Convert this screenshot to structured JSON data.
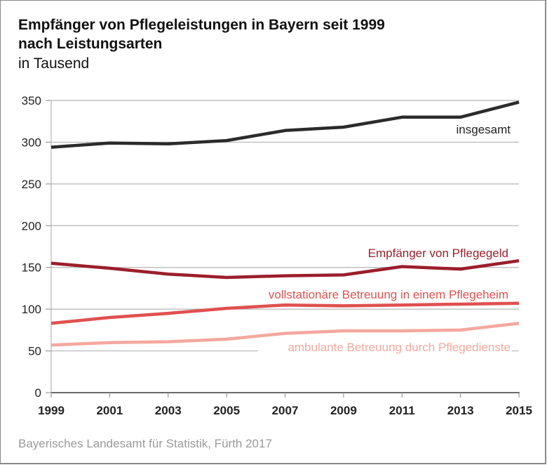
{
  "title_line1": "Empfänger von Pflegeleistungen in Bayern seit 1999",
  "title_line2": "nach Leistungsarten",
  "subtitle": "in Tausend",
  "source": "Bayerisches Landesamt für Statistik, Fürth 2017",
  "chart_data": {
    "type": "line",
    "title": "Empfänger von Pflegeleistungen in Bayern seit 1999 nach Leistungsarten",
    "subtitle": "in Tausend",
    "xlabel": "",
    "ylabel": "",
    "x": [
      1999,
      2001,
      2003,
      2005,
      2007,
      2009,
      2011,
      2013,
      2015
    ],
    "x_tick_labels": [
      "1999",
      "2001",
      "2003",
      "2005",
      "2007",
      "2009",
      "2011",
      "2013",
      "2015"
    ],
    "y_tick_labels": [
      "0",
      "50",
      "100",
      "150",
      "200",
      "250",
      "300",
      "350"
    ],
    "y_ticks": [
      0,
      50,
      100,
      150,
      200,
      250,
      300,
      350
    ],
    "ylim": [
      0,
      350
    ],
    "grid": "horizontal",
    "legend": "inline-labels",
    "series": [
      {
        "name": "insgesamt",
        "color": "#2b2b2b",
        "values": [
          294,
          299,
          298,
          302,
          314,
          318,
          330,
          330,
          348
        ]
      },
      {
        "name": "Empfänger von Pflegegeld",
        "color": "#9b1f2b",
        "values": [
          155,
          149,
          142,
          138,
          140,
          141,
          151,
          148,
          158
        ]
      },
      {
        "name": "vollstationäre Betreuung in einem Pflegeheim",
        "color": "#e0504f",
        "values": [
          83,
          90,
          95,
          101,
          105,
          104,
          105,
          106,
          107
        ]
      },
      {
        "name": "ambulante Betreuung durch Pflegedienste",
        "color": "#f4a89e",
        "values": [
          57,
          60,
          61,
          64,
          71,
          74,
          74,
          75,
          83
        ]
      }
    ]
  }
}
